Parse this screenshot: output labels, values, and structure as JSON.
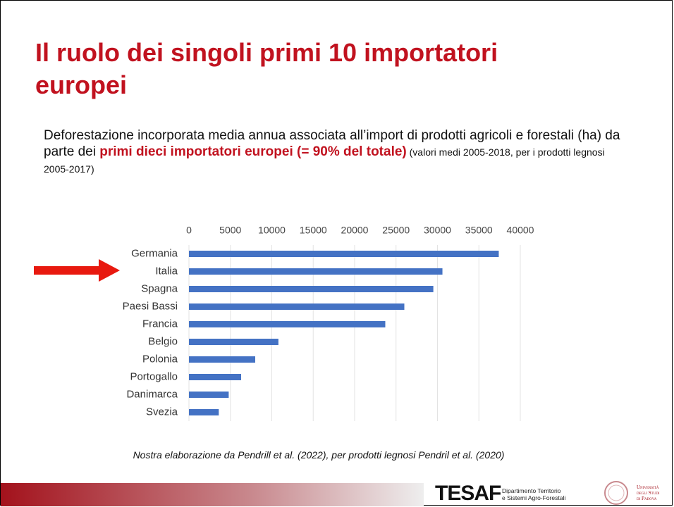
{
  "title": "Il ruolo dei singoli primi 10 importatori europei",
  "description": [
    "Deforestazione incorporata media annua associata all’import di prodotti agricoli e forestali (ha) da parte dei ",
    "primi dieci importatori europei (= 90% del totale)",
    " (valori medi 2005-2018, per i prodotti legnosi 2005-2017)"
  ],
  "chart_data": {
    "type": "bar",
    "orientation": "horizontal",
    "categories": [
      "Germania",
      "Italia",
      "Spagna",
      "Paesi Bassi",
      "Francia",
      "Belgio",
      "Polonia",
      "Portogallo",
      "Danimarca",
      "Svezia"
    ],
    "values": [
      37400,
      30600,
      29500,
      26000,
      23700,
      10800,
      8000,
      6300,
      4800,
      3600
    ],
    "color": "#4472c4",
    "xlim": [
      0,
      40000
    ],
    "xticks": [
      0,
      5000,
      10000,
      15000,
      20000,
      25000,
      30000,
      35000,
      40000
    ],
    "grid": true
  },
  "footnote": "Nostra elaborazione da Pendrill et al. (2022), per prodotti legnosi Pendril et al. (2020)",
  "logos": {
    "tesaf": "TESAF",
    "tesaf_sub": [
      "Dipartimento Territorio",
      "e Sistemi Agro-Forestali"
    ],
    "university": [
      "Università",
      "degli Studi",
      "di Padova"
    ]
  }
}
